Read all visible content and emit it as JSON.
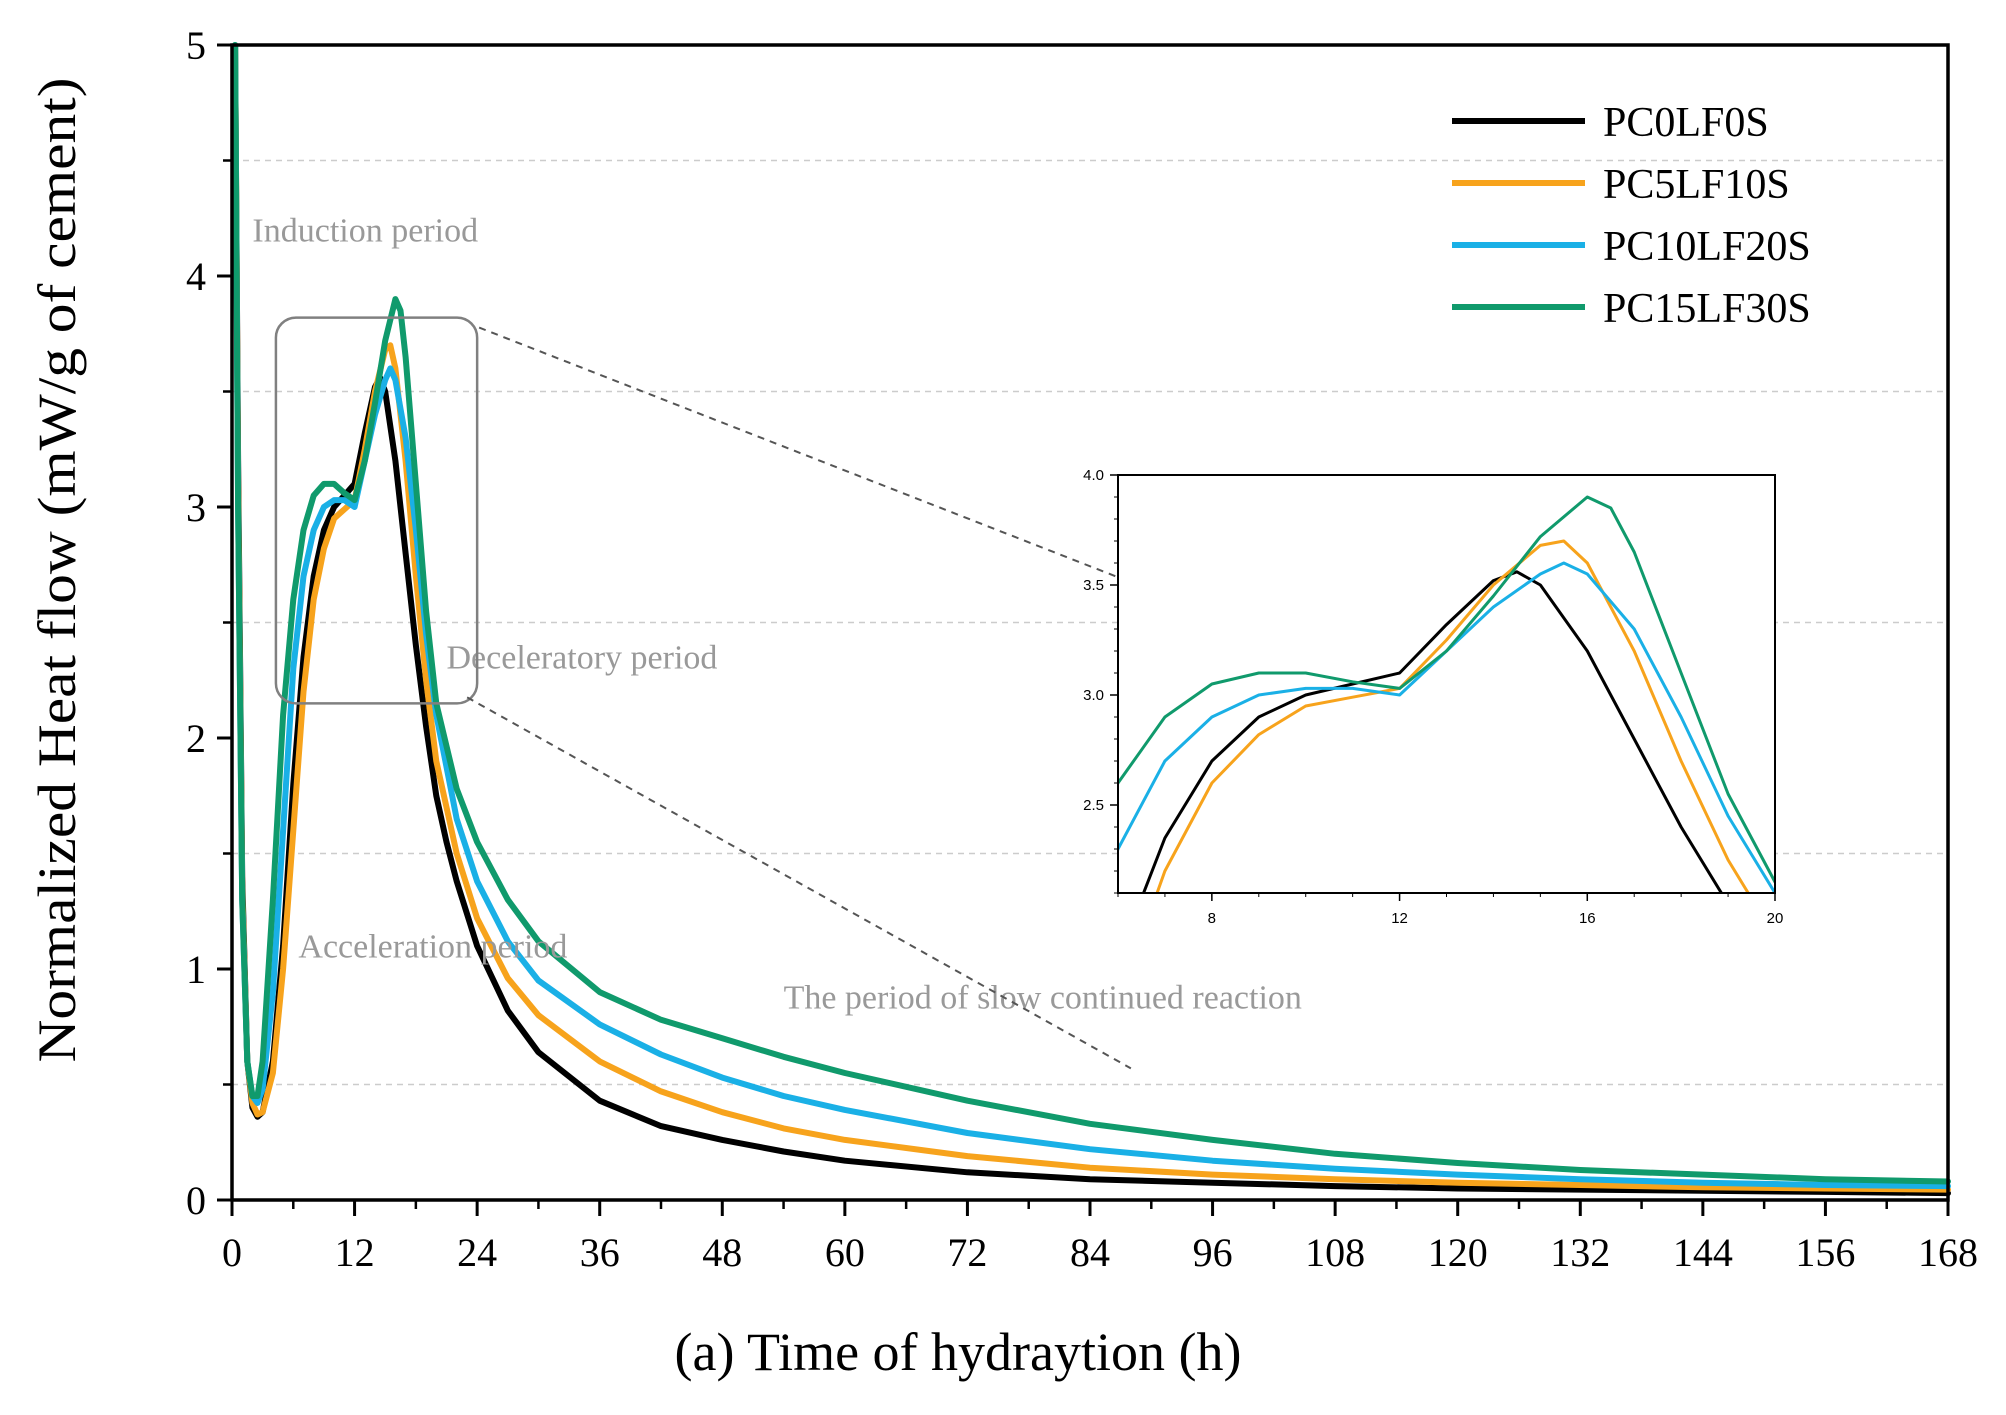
{
  "chart_data": {
    "type": "line",
    "title": "",
    "xlabel": "(a) Time of hydraytion (h)",
    "ylabel": "Normalized Heat flow (mW/g of cement)",
    "xlim": [
      0,
      168
    ],
    "ylim": [
      0,
      5
    ],
    "xticks": [
      "0",
      "12",
      "24",
      "36",
      "48",
      "60",
      "72",
      "84",
      "96",
      "108",
      "120",
      "132",
      "144",
      "156",
      "168"
    ],
    "yticks": [
      "0",
      "1",
      "2",
      "3",
      "4",
      "5"
    ],
    "legend_position": "top-right",
    "annotations": [
      {
        "label": "Induction period",
        "x": 2,
        "y": 4.15
      },
      {
        "label": "Acceleration period",
        "x": 6.5,
        "y": 1.05
      },
      {
        "label": "Deceleratory period",
        "x": 21,
        "y": 2.3
      },
      {
        "label": "The period of slow continued reaction",
        "x": 54,
        "y": 0.83
      }
    ],
    "colors": {
      "PC0LF0S": "#000000",
      "PC5LF10S": "#F7A31C",
      "PC10LF20S": "#1AB0E6",
      "PC15LF30S": "#109A6C",
      "annotation": "#999999",
      "grid": "#cccccc",
      "zoom": "#808080"
    },
    "series": [
      {
        "name": "PC0LF0S",
        "points": [
          [
            0.3,
            5.0
          ],
          [
            0.6,
            3.2
          ],
          [
            1.0,
            1.4
          ],
          [
            1.5,
            0.6
          ],
          [
            2.0,
            0.4
          ],
          [
            2.5,
            0.36
          ],
          [
            3.0,
            0.38
          ],
          [
            4.0,
            0.6
          ],
          [
            5.0,
            1.1
          ],
          [
            6.0,
            1.8
          ],
          [
            7.0,
            2.35
          ],
          [
            8.0,
            2.7
          ],
          [
            9.0,
            2.9
          ],
          [
            10.0,
            3.0
          ],
          [
            11.0,
            3.05
          ],
          [
            12.0,
            3.1
          ],
          [
            13.0,
            3.32
          ],
          [
            14.0,
            3.52
          ],
          [
            14.5,
            3.56
          ],
          [
            15.0,
            3.5
          ],
          [
            16.0,
            3.2
          ],
          [
            17.0,
            2.8
          ],
          [
            18.0,
            2.4
          ],
          [
            19.0,
            2.05
          ],
          [
            20.0,
            1.75
          ],
          [
            21.0,
            1.55
          ],
          [
            22.0,
            1.38
          ],
          [
            24.0,
            1.1
          ],
          [
            27.0,
            0.82
          ],
          [
            30.0,
            0.64
          ],
          [
            36.0,
            0.43
          ],
          [
            42.0,
            0.32
          ],
          [
            48.0,
            0.26
          ],
          [
            54.0,
            0.21
          ],
          [
            60.0,
            0.17
          ],
          [
            72.0,
            0.12
          ],
          [
            84.0,
            0.09
          ],
          [
            96.0,
            0.075
          ],
          [
            108.0,
            0.06
          ],
          [
            120.0,
            0.05
          ],
          [
            132.0,
            0.045
          ],
          [
            144.0,
            0.04
          ],
          [
            156.0,
            0.035
          ],
          [
            168.0,
            0.03
          ]
        ]
      },
      {
        "name": "PC5LF10S",
        "points": [
          [
            0.3,
            5.0
          ],
          [
            0.6,
            3.1
          ],
          [
            1.0,
            1.35
          ],
          [
            1.5,
            0.6
          ],
          [
            2.0,
            0.42
          ],
          [
            2.5,
            0.37
          ],
          [
            3.0,
            0.38
          ],
          [
            4.0,
            0.55
          ],
          [
            5.0,
            1.0
          ],
          [
            6.0,
            1.6
          ],
          [
            7.0,
            2.2
          ],
          [
            8.0,
            2.6
          ],
          [
            9.0,
            2.82
          ],
          [
            10.0,
            2.95
          ],
          [
            11.0,
            2.99
          ],
          [
            12.0,
            3.03
          ],
          [
            13.0,
            3.25
          ],
          [
            14.0,
            3.5
          ],
          [
            15.0,
            3.68
          ],
          [
            15.5,
            3.7
          ],
          [
            16.0,
            3.6
          ],
          [
            17.0,
            3.2
          ],
          [
            18.0,
            2.7
          ],
          [
            19.0,
            2.25
          ],
          [
            20.0,
            1.9
          ],
          [
            22.0,
            1.5
          ],
          [
            24.0,
            1.22
          ],
          [
            27.0,
            0.96
          ],
          [
            30.0,
            0.8
          ],
          [
            36.0,
            0.6
          ],
          [
            42.0,
            0.47
          ],
          [
            48.0,
            0.38
          ],
          [
            54.0,
            0.31
          ],
          [
            60.0,
            0.26
          ],
          [
            72.0,
            0.19
          ],
          [
            84.0,
            0.14
          ],
          [
            96.0,
            0.11
          ],
          [
            108.0,
            0.09
          ],
          [
            120.0,
            0.075
          ],
          [
            132.0,
            0.065
          ],
          [
            144.0,
            0.055
          ],
          [
            156.0,
            0.05
          ],
          [
            168.0,
            0.045
          ]
        ]
      },
      {
        "name": "PC10LF20S",
        "points": [
          [
            0.3,
            5.0
          ],
          [
            0.6,
            3.0
          ],
          [
            1.0,
            1.3
          ],
          [
            1.5,
            0.6
          ],
          [
            2.0,
            0.45
          ],
          [
            2.5,
            0.42
          ],
          [
            3.0,
            0.48
          ],
          [
            4.0,
            0.9
          ],
          [
            5.0,
            1.6
          ],
          [
            6.0,
            2.3
          ],
          [
            7.0,
            2.7
          ],
          [
            8.0,
            2.9
          ],
          [
            9.0,
            3.0
          ],
          [
            10.0,
            3.03
          ],
          [
            11.0,
            3.03
          ],
          [
            12.0,
            3.0
          ],
          [
            13.0,
            3.2
          ],
          [
            14.0,
            3.4
          ],
          [
            15.0,
            3.55
          ],
          [
            15.5,
            3.6
          ],
          [
            16.0,
            3.55
          ],
          [
            17.0,
            3.3
          ],
          [
            18.0,
            2.9
          ],
          [
            19.0,
            2.45
          ],
          [
            20.0,
            2.1
          ],
          [
            22.0,
            1.65
          ],
          [
            24.0,
            1.38
          ],
          [
            27.0,
            1.12
          ],
          [
            30.0,
            0.95
          ],
          [
            36.0,
            0.76
          ],
          [
            42.0,
            0.63
          ],
          [
            48.0,
            0.53
          ],
          [
            54.0,
            0.45
          ],
          [
            60.0,
            0.39
          ],
          [
            72.0,
            0.29
          ],
          [
            84.0,
            0.22
          ],
          [
            96.0,
            0.17
          ],
          [
            108.0,
            0.135
          ],
          [
            120.0,
            0.11
          ],
          [
            132.0,
            0.09
          ],
          [
            144.0,
            0.075
          ],
          [
            156.0,
            0.065
          ],
          [
            168.0,
            0.06
          ]
        ]
      },
      {
        "name": "PC15LF30S",
        "points": [
          [
            0.3,
            5.0
          ],
          [
            0.6,
            3.0
          ],
          [
            1.0,
            1.3
          ],
          [
            1.5,
            0.6
          ],
          [
            2.0,
            0.45
          ],
          [
            2.5,
            0.45
          ],
          [
            3.0,
            0.6
          ],
          [
            4.0,
            1.3
          ],
          [
            5.0,
            2.1
          ],
          [
            6.0,
            2.6
          ],
          [
            7.0,
            2.9
          ],
          [
            8.0,
            3.05
          ],
          [
            9.0,
            3.1
          ],
          [
            10.0,
            3.1
          ],
          [
            11.0,
            3.06
          ],
          [
            12.0,
            3.03
          ],
          [
            13.0,
            3.2
          ],
          [
            14.0,
            3.45
          ],
          [
            15.0,
            3.72
          ],
          [
            16.0,
            3.9
          ],
          [
            16.5,
            3.85
          ],
          [
            17.0,
            3.65
          ],
          [
            18.0,
            3.1
          ],
          [
            19.0,
            2.55
          ],
          [
            20.0,
            2.15
          ],
          [
            22.0,
            1.78
          ],
          [
            24.0,
            1.55
          ],
          [
            27.0,
            1.3
          ],
          [
            30.0,
            1.12
          ],
          [
            36.0,
            0.9
          ],
          [
            42.0,
            0.78
          ],
          [
            48.0,
            0.7
          ],
          [
            54.0,
            0.62
          ],
          [
            60.0,
            0.55
          ],
          [
            72.0,
            0.43
          ],
          [
            84.0,
            0.33
          ],
          [
            96.0,
            0.26
          ],
          [
            108.0,
            0.2
          ],
          [
            120.0,
            0.16
          ],
          [
            132.0,
            0.13
          ],
          [
            144.0,
            0.11
          ],
          [
            156.0,
            0.09
          ],
          [
            168.0,
            0.08
          ]
        ]
      }
    ],
    "inset": {
      "xlim": [
        6,
        20
      ],
      "ylim": [
        2.1,
        4.0
      ],
      "xticks": [
        "8",
        "12",
        "16",
        "20"
      ],
      "yticks": [
        "2.5",
        "3.0",
        "3.5",
        "4.0"
      ],
      "zoom_box": {
        "x_range": [
          4.3,
          24
        ],
        "y_range": [
          2.15,
          3.82
        ]
      }
    }
  }
}
